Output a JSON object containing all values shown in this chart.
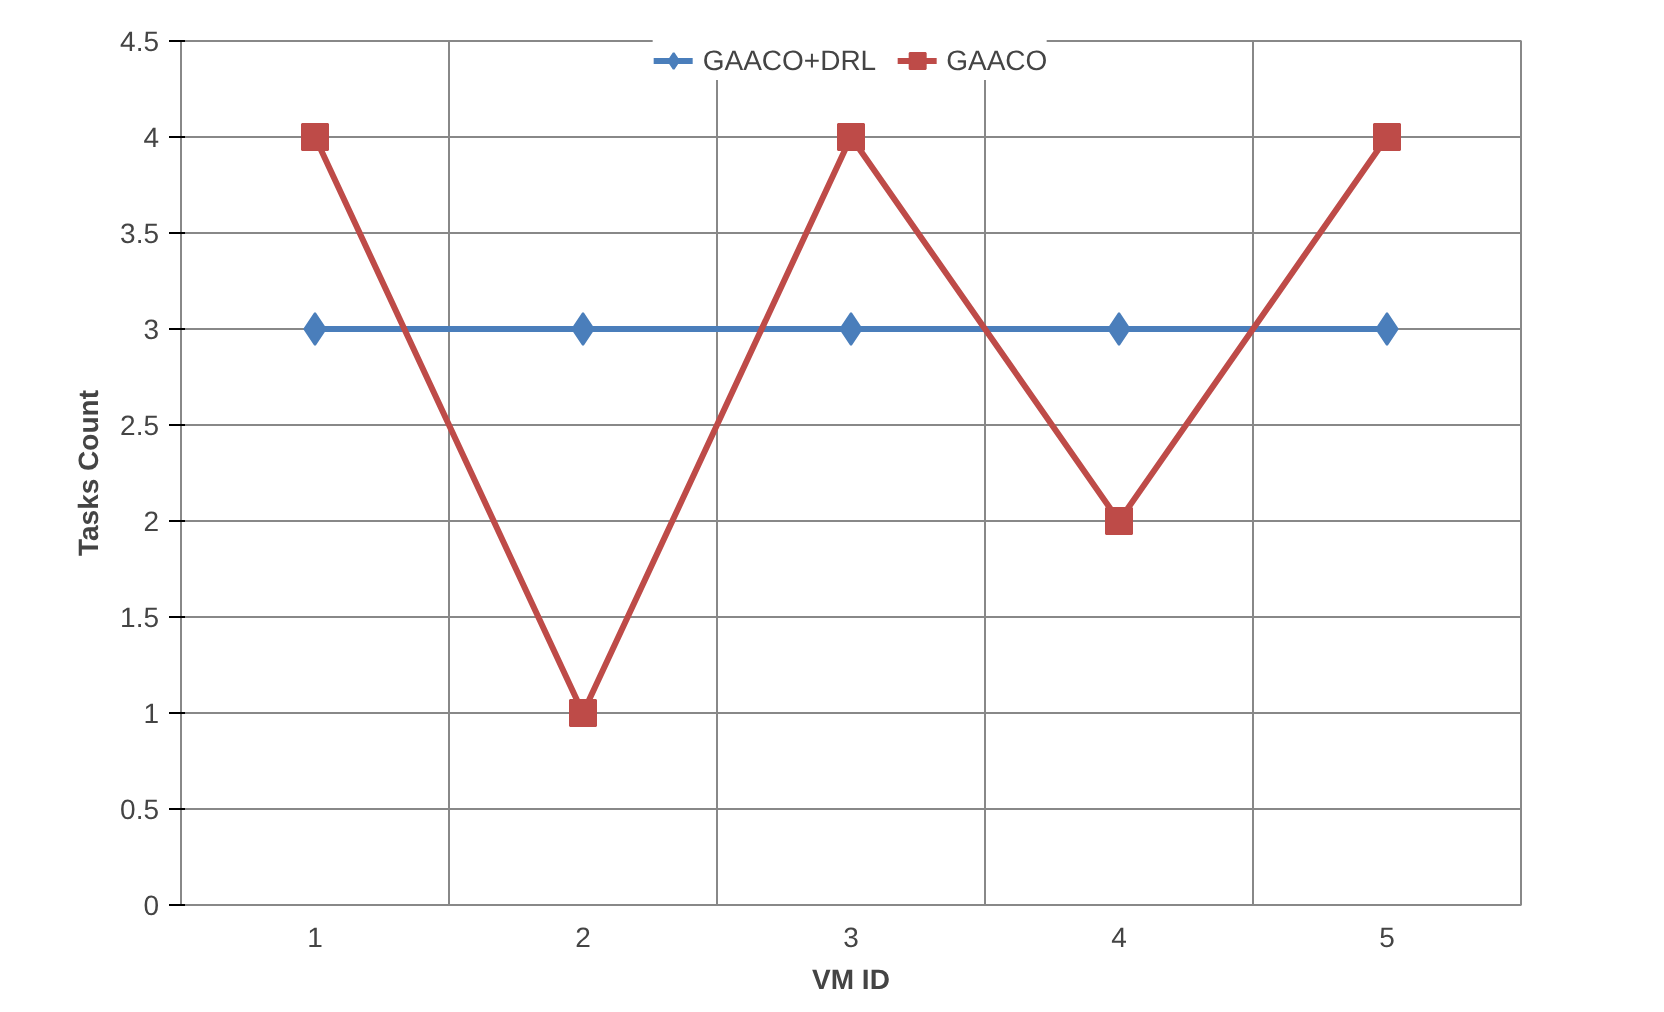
{
  "chart_data": {
    "type": "line",
    "xlabel": "VM ID",
    "ylabel": "Tasks Count",
    "categories": [
      "1",
      "2",
      "3",
      "4",
      "5"
    ],
    "series": [
      {
        "name": "GAACO+DRL",
        "color": "#4a7ebb",
        "marker": "diamond",
        "values": [
          3,
          3,
          3,
          3,
          3
        ]
      },
      {
        "name": "GAACO",
        "color": "#be4b48",
        "marker": "square",
        "values": [
          4,
          1,
          4,
          2,
          4
        ]
      }
    ],
    "ylim": [
      0,
      4.5
    ],
    "yticks": [
      0,
      0.5,
      1,
      1.5,
      2,
      2.5,
      3,
      3.5,
      4,
      4.5
    ],
    "grid": true,
    "legend": "top",
    "line_style": "solid"
  }
}
